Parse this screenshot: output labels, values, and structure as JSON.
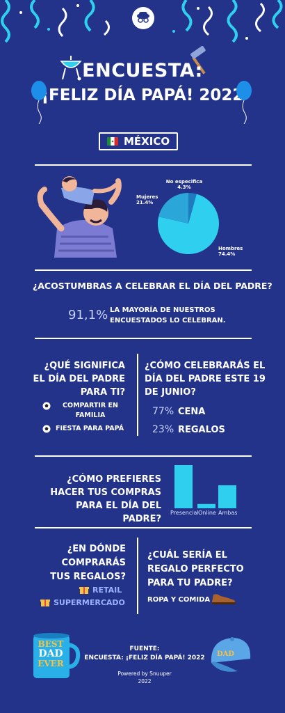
{
  "header": {
    "title_line1": "ENCUESTA:",
    "title_line2": "¡FELIZ DÍA PAPÁ! 2022",
    "country": "MÉXICO"
  },
  "gender_pie": {
    "chart_data": {
      "type": "pie",
      "slices": [
        {
          "label": "Hombres",
          "value": 74.4,
          "color": "#2fd0ef"
        },
        {
          "label": "Mujeres",
          "value": 21.4,
          "color": "#2aa6d9"
        },
        {
          "label": "No especifica",
          "value": 4.3,
          "color": "#1f7ac0"
        }
      ]
    },
    "labels": {
      "men": "Hombres",
      "men_value": "74.4%",
      "women": "Mujeres",
      "women_value": "21.4%",
      "unspecified": "No especifica",
      "unspecified_value": "4.3%"
    }
  },
  "celebrate": {
    "question": "¿ACOSTUMBRAS A CELEBRAR EL DÍA DEL PADRE?",
    "percent": "91,1%",
    "text_line1": "LA MAYORÍA DE NUESTROS",
    "text_line2": "ENCUESTADOS LO CELEBRAN."
  },
  "meaning": {
    "question_line1": "¿QUÉ SIGNIFICA",
    "question_line2": "EL DÍA DEL PADRE",
    "question_line3": "PARA TI?",
    "option1_line1": "COMPARTIR EN",
    "option1_line2": "FAMILIA",
    "option2": "FIESTA PARA PAPÁ"
  },
  "how_celebrate": {
    "question_line1": "¿CÓMO CELEBRARÁS EL",
    "question_line2": "DÍA DEL PADRE ESTE 19",
    "question_line3": "DE JUNIO?",
    "items": [
      {
        "percent": "77%",
        "label": "CENA"
      },
      {
        "percent": "23%",
        "label": "REGALOS"
      }
    ]
  },
  "purchase": {
    "question_line1": "¿CÓMO PREFIERES",
    "question_line2": "HACER TUS COMPRAS",
    "question_line3": "PARA EL DÍA DEL PADRE?",
    "chart_data": {
      "type": "bar",
      "categories": [
        "Presencial",
        "Online",
        "Ambas"
      ],
      "values": [
        60,
        6,
        32
      ],
      "ylim": [
        0,
        60
      ],
      "color": "#2fd0ef"
    }
  },
  "where": {
    "question_line1": "¿EN DÓNDE",
    "question_line2": "COMPRARÁS",
    "question_line3": "TUS REGALOS?",
    "option1": "RETAIL",
    "option2": "SUPERMERCADO"
  },
  "gift": {
    "question_line1": "¿CUÁL SERÍA EL",
    "question_line2": "REGALO PERFECTO",
    "question_line3": "PARA TU PADRE?",
    "answer": "ROPA Y COMIDA"
  },
  "footer": {
    "source_label": "FUENTE:",
    "source": "ENCUESTA: ¡FELIZ DÍA PAPÁ! 2022",
    "powered": "Powered by Snuuper",
    "year": "2022",
    "mug_text": [
      "BEST",
      "DAD",
      "EVER"
    ],
    "cap_text": "DAD"
  },
  "colors": {
    "background": "#24338a",
    "cyan": "#2fd0ef",
    "accent_text": "#9ab1ff"
  }
}
